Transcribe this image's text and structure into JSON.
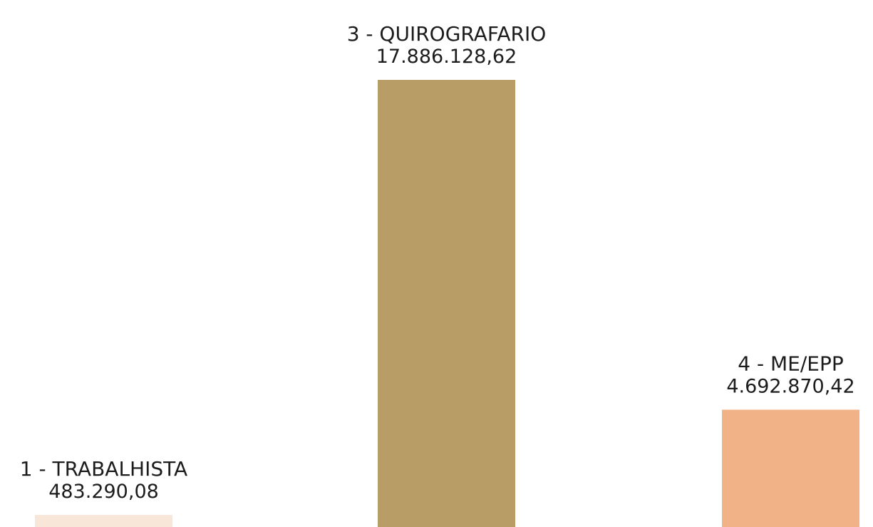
{
  "chart_data": {
    "type": "bar",
    "categories": [
      "1 - TRABALHISTA",
      "3 - QUIROGRAFARIO",
      "4 - ME/EPP"
    ],
    "values": [
      483290.08,
      17886128.62,
      4692870.42
    ],
    "value_labels": [
      "483.290,08",
      "17.886.128,62",
      "4.692.870,42"
    ],
    "colors": [
      "#f8e6d8",
      "#b89d66",
      "#f2b287"
    ],
    "title": "",
    "xlabel": "",
    "ylabel": "",
    "grid": false,
    "legend": "none"
  }
}
